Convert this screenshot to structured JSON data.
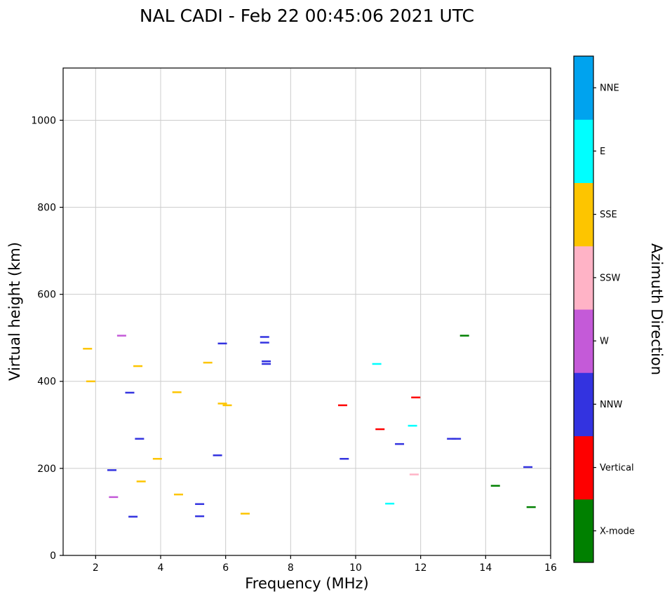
{
  "chart_data": {
    "type": "scatter",
    "title": "NAL CADI - Feb 22 00:45:06 2021 UTC",
    "xlabel": "Frequency (MHz)",
    "ylabel": "Virtual height (km)",
    "xlim": [
      1,
      16
    ],
    "ylim": [
      0,
      1120
    ],
    "xticks": [
      2,
      4,
      6,
      8,
      10,
      12,
      14,
      16
    ],
    "yticks": [
      0,
      200,
      400,
      600,
      800,
      1000
    ],
    "grid": true,
    "grid_color": "#cccccc",
    "marker": "horizontal dash",
    "colorbar": {
      "label": "Azimuth Direction",
      "position": "right",
      "categories_bottom_to_top": [
        {
          "label": "X-mode",
          "color": "#008000"
        },
        {
          "label": "Vertical",
          "color": "#fe0000"
        },
        {
          "label": "NNW",
          "color": "#3333e0"
        },
        {
          "label": "W",
          "color": "#c45ad8"
        },
        {
          "label": "SSW",
          "color": "#ffb3c6"
        },
        {
          "label": "SSE",
          "color": "#fdc500"
        },
        {
          "label": "E",
          "color": "#00ffff"
        },
        {
          "label": "NNE",
          "color": "#00a3ee"
        }
      ]
    },
    "points": [
      {
        "x": 1.75,
        "y": 475,
        "dir": "SSE"
      },
      {
        "x": 1.85,
        "y": 400,
        "dir": "SSE"
      },
      {
        "x": 2.5,
        "y": 196,
        "dir": "NNW"
      },
      {
        "x": 2.55,
        "y": 134,
        "dir": "W"
      },
      {
        "x": 2.8,
        "y": 505,
        "dir": "W"
      },
      {
        "x": 3.05,
        "y": 374,
        "dir": "NNW"
      },
      {
        "x": 3.15,
        "y": 89,
        "dir": "NNW"
      },
      {
        "x": 3.3,
        "y": 435,
        "dir": "SSE"
      },
      {
        "x": 3.35,
        "y": 268,
        "dir": "NNW"
      },
      {
        "x": 3.4,
        "y": 170,
        "dir": "SSE"
      },
      {
        "x": 3.9,
        "y": 222,
        "dir": "SSE"
      },
      {
        "x": 4.5,
        "y": 375,
        "dir": "SSE"
      },
      {
        "x": 4.55,
        "y": 140,
        "dir": "SSE"
      },
      {
        "x": 5.2,
        "y": 118,
        "dir": "NNW"
      },
      {
        "x": 5.2,
        "y": 90,
        "dir": "NNW"
      },
      {
        "x": 5.45,
        "y": 443,
        "dir": "SSE"
      },
      {
        "x": 5.75,
        "y": 230,
        "dir": "NNW"
      },
      {
        "x": 5.9,
        "y": 487,
        "dir": "NNW"
      },
      {
        "x": 5.9,
        "y": 349,
        "dir": "SSE"
      },
      {
        "x": 6.05,
        "y": 345,
        "dir": "SSE"
      },
      {
        "x": 6.6,
        "y": 96,
        "dir": "SSE"
      },
      {
        "x": 7.2,
        "y": 502,
        "dir": "NNW"
      },
      {
        "x": 7.2,
        "y": 489,
        "dir": "NNW"
      },
      {
        "x": 7.25,
        "y": 446,
        "dir": "NNW"
      },
      {
        "x": 7.25,
        "y": 440,
        "dir": "NNW"
      },
      {
        "x": 9.6,
        "y": 345,
        "dir": "Vertical"
      },
      {
        "x": 9.65,
        "y": 222,
        "dir": "NNW"
      },
      {
        "x": 10.65,
        "y": 440,
        "dir": "E"
      },
      {
        "x": 10.75,
        "y": 290,
        "dir": "Vertical"
      },
      {
        "x": 11.05,
        "y": 119,
        "dir": "E"
      },
      {
        "x": 11.35,
        "y": 256,
        "dir": "NNW"
      },
      {
        "x": 11.75,
        "y": 298,
        "dir": "E"
      },
      {
        "x": 11.8,
        "y": 186,
        "dir": "SSW"
      },
      {
        "x": 11.85,
        "y": 363,
        "dir": "Vertical"
      },
      {
        "x": 12.95,
        "y": 268,
        "dir": "NNW"
      },
      {
        "x": 13.1,
        "y": 268,
        "dir": "NNW"
      },
      {
        "x": 13.35,
        "y": 505,
        "dir": "X-mode"
      },
      {
        "x": 14.3,
        "y": 160,
        "dir": "X-mode"
      },
      {
        "x": 15.3,
        "y": 203,
        "dir": "NNW"
      },
      {
        "x": 15.4,
        "y": 111,
        "dir": "X-mode"
      }
    ]
  }
}
